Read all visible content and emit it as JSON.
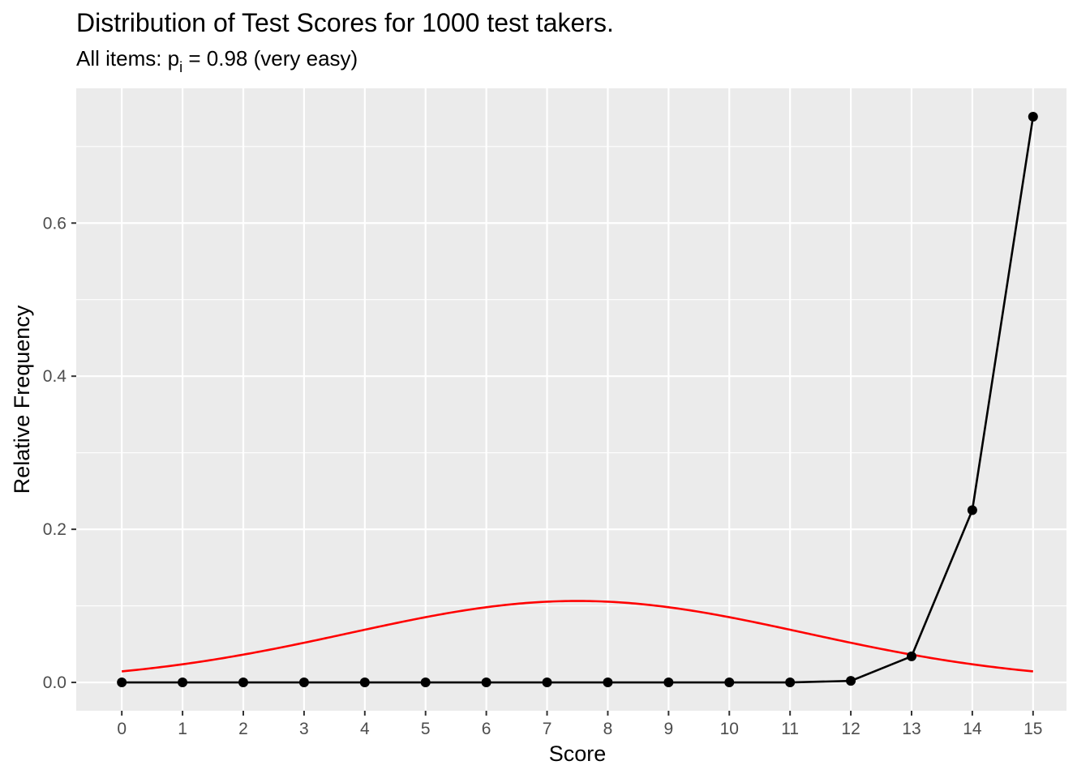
{
  "chart_data": {
    "type": "line",
    "title": "Distribution of Test Scores for 1000 test takers.",
    "subtitle": {
      "prefix": "All items: p",
      "subscript": "i",
      "suffix": " = 0.98 (very easy)"
    },
    "xlabel": "Score",
    "ylabel": "Relative Frequency",
    "x": [
      0,
      1,
      2,
      3,
      4,
      5,
      6,
      7,
      8,
      9,
      10,
      11,
      12,
      13,
      14,
      15
    ],
    "x_tick_labels": [
      "0",
      "1",
      "2",
      "3",
      "4",
      "5",
      "6",
      "7",
      "8",
      "9",
      "10",
      "11",
      "12",
      "13",
      "14",
      "15"
    ],
    "y_tick_values": [
      0.0,
      0.2,
      0.4,
      0.6
    ],
    "y_tick_labels": [
      "0.0",
      "0.2",
      "0.4",
      "0.6"
    ],
    "xlim": [
      -0.75,
      15.55
    ],
    "ylim": [
      -0.037,
      0.776
    ],
    "grid": true,
    "series": [
      {
        "kind": "line+points",
        "color": "#000000",
        "values": [
          0,
          0,
          0,
          0,
          0,
          0,
          0,
          0,
          0,
          0,
          0,
          0,
          0.002,
          0.034,
          0.225,
          0.739
        ]
      },
      {
        "kind": "curve",
        "color": "#ff0000",
        "normal": {
          "mean": 7.5,
          "sd": 3.75
        }
      }
    ]
  }
}
